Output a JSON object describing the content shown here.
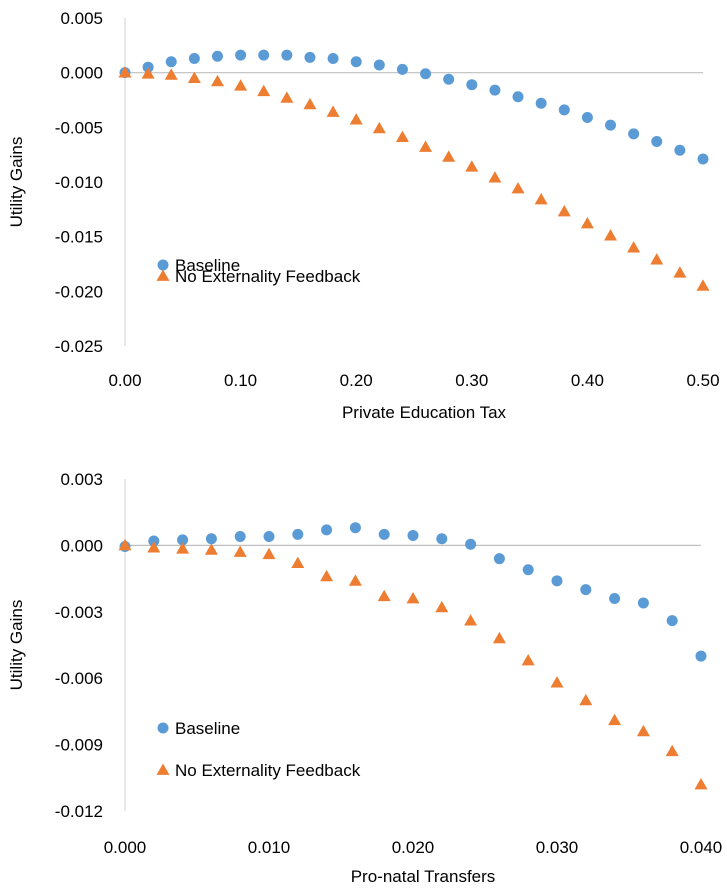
{
  "chart_data": [
    {
      "type": "scatter",
      "xlabel": "Private Education Tax",
      "ylabel": "Utility Gains",
      "xlim": [
        0,
        0.5
      ],
      "ylim": [
        -0.025,
        0.005
      ],
      "x_ticks": [
        "0.00",
        "0.10",
        "0.20",
        "0.30",
        "0.40",
        "0.50"
      ],
      "y_ticks": [
        "0.005",
        "0.000",
        "-0.005",
        "-0.010",
        "-0.015",
        "-0.020",
        "-0.025"
      ],
      "legend_position": "lower-left",
      "grid": false,
      "x": [
        0.0,
        0.02,
        0.04,
        0.06,
        0.08,
        0.1,
        0.12,
        0.14,
        0.16,
        0.18,
        0.2,
        0.22,
        0.24,
        0.26,
        0.28,
        0.3,
        0.32,
        0.34,
        0.36,
        0.38,
        0.4,
        0.42,
        0.44,
        0.46,
        0.48,
        0.5
      ],
      "series": [
        {
          "name": "Baseline",
          "marker": "circle",
          "color": "#5B9BD5",
          "values": [
            0.0,
            0.0005,
            0.001,
            0.0013,
            0.0015,
            0.0016,
            0.0016,
            0.0016,
            0.0014,
            0.0013,
            0.001,
            0.0007,
            0.0003,
            -0.0001,
            -0.0006,
            -0.0011,
            -0.0016,
            -0.0022,
            -0.0028,
            -0.0034,
            -0.0041,
            -0.0048,
            -0.0056,
            -0.0063,
            -0.0071,
            -0.0079
          ]
        },
        {
          "name": "No Externality Feedback",
          "marker": "triangle",
          "color": "#ED7D31",
          "values": [
            0.0,
            -0.0001,
            -0.0002,
            -0.0005,
            -0.0008,
            -0.0012,
            -0.0017,
            -0.0023,
            -0.0029,
            -0.0036,
            -0.0043,
            -0.0051,
            -0.0059,
            -0.0068,
            -0.0077,
            -0.0086,
            -0.0096,
            -0.0106,
            -0.0116,
            -0.0127,
            -0.0138,
            -0.0149,
            -0.016,
            -0.0171,
            -0.0183,
            -0.0195
          ]
        }
      ]
    },
    {
      "type": "scatter",
      "xlabel": "Pro-natal Transfers",
      "ylabel": "Utility Gains",
      "xlim": [
        0,
        0.04
      ],
      "ylim": [
        -0.012,
        0.003
      ],
      "x_ticks": [
        "0.000",
        "0.010",
        "0.020",
        "0.030",
        "0.040"
      ],
      "y_ticks": [
        "0.003",
        "0.000",
        "-0.003",
        "-0.006",
        "-0.009",
        "-0.012"
      ],
      "legend_position": "lower-left",
      "grid": false,
      "x": [
        0.0,
        0.002,
        0.004,
        0.006,
        0.008,
        0.01,
        0.012,
        0.014,
        0.016,
        0.018,
        0.02,
        0.022,
        0.024,
        0.026,
        0.028,
        0.03,
        0.032,
        0.034,
        0.036,
        0.038,
        0.04
      ],
      "series": [
        {
          "name": "Baseline",
          "marker": "circle",
          "color": "#5B9BD5",
          "values": [
            -5e-05,
            0.0002,
            0.00025,
            0.0003,
            0.0004,
            0.0004,
            0.0005,
            0.0007,
            0.0008,
            0.0005,
            0.00045,
            0.0003,
            5e-05,
            -0.0006,
            -0.0011,
            -0.0016,
            -0.002,
            -0.0024,
            -0.0026,
            -0.0034,
            -0.005
          ]
        },
        {
          "name": "No Externality Feedback",
          "marker": "triangle",
          "color": "#ED7D31",
          "values": [
            0.0,
            -0.0001,
            -0.00015,
            -0.0002,
            -0.0003,
            -0.0004,
            -0.0008,
            -0.0014,
            -0.0016,
            -0.0023,
            -0.0024,
            -0.0028,
            -0.0034,
            -0.0042,
            -0.0052,
            -0.0062,
            -0.007,
            -0.0079,
            -0.0084,
            -0.0093,
            -0.0108
          ]
        }
      ]
    }
  ]
}
